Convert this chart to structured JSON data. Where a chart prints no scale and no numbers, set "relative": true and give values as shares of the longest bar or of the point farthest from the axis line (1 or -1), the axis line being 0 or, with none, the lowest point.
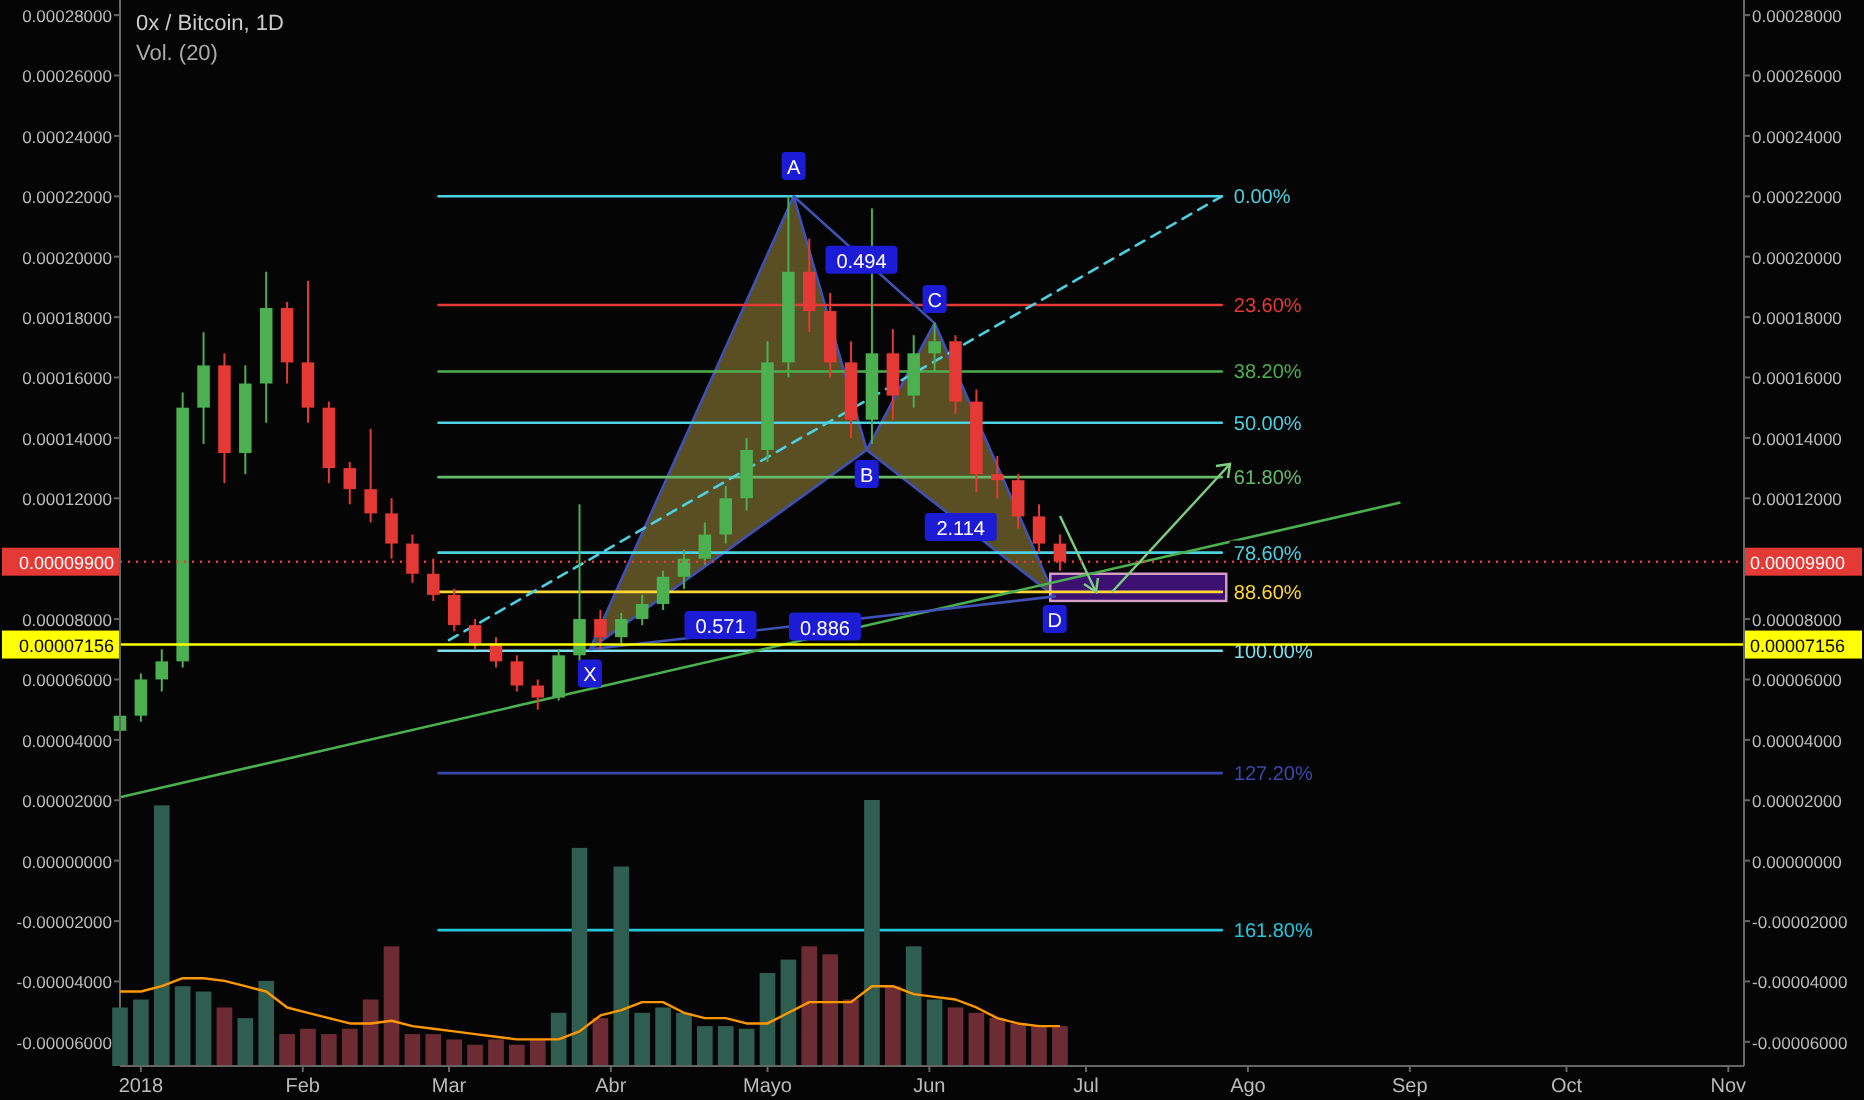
{
  "chart_data": [
    {
      "type": "candlestick",
      "title": "0x / Bitcoin, 1D",
      "x": [
        "2017-12-28",
        "2018-01-01",
        "2018-01-05",
        "2018-01-09",
        "2018-01-13",
        "2018-01-17",
        "2018-01-21",
        "2018-01-25",
        "2018-01-29",
        "2018-02-02",
        "2018-02-06",
        "2018-02-10",
        "2018-02-14",
        "2018-02-18",
        "2018-02-22",
        "2018-02-26",
        "2018-03-02",
        "2018-03-06",
        "2018-03-10",
        "2018-03-14",
        "2018-03-18",
        "2018-03-22",
        "2018-03-26",
        "2018-03-30",
        "2018-04-03",
        "2018-04-07",
        "2018-04-11",
        "2018-04-15",
        "2018-04-19",
        "2018-04-23",
        "2018-04-27",
        "2018-05-01",
        "2018-05-05",
        "2018-05-09",
        "2018-05-13",
        "2018-05-17",
        "2018-05-21",
        "2018-05-25",
        "2018-05-29",
        "2018-06-02",
        "2018-06-06",
        "2018-06-10",
        "2018-06-14",
        "2018-06-18",
        "2018-06-22",
        "2018-06-26"
      ],
      "ohlc": [
        [
          4.3e-05,
          5e-05,
          4.2e-05,
          4.8e-05
        ],
        [
          4.8e-05,
          6.2e-05,
          4.6e-05,
          6e-05
        ],
        [
          6e-05,
          7e-05,
          5.6e-05,
          6.6e-05
        ],
        [
          6.6e-05,
          0.000155,
          6.4e-05,
          0.00015
        ],
        [
          0.00015,
          0.000175,
          0.000138,
          0.000164
        ],
        [
          0.000164,
          0.000168,
          0.000125,
          0.000135
        ],
        [
          0.000135,
          0.000164,
          0.000128,
          0.000158
        ],
        [
          0.000158,
          0.000195,
          0.000145,
          0.000183
        ],
        [
          0.000183,
          0.000185,
          0.000158,
          0.000165
        ],
        [
          0.000165,
          0.000192,
          0.000145,
          0.00015
        ],
        [
          0.00015,
          0.000152,
          0.000125,
          0.00013
        ],
        [
          0.00013,
          0.000132,
          0.000118,
          0.000123
        ],
        [
          0.000123,
          0.000143,
          0.000112,
          0.000115
        ],
        [
          0.000115,
          0.00012,
          0.0001,
          0.000105
        ],
        [
          0.000105,
          0.000108,
          9.2e-05,
          9.5e-05
        ],
        [
          9.5e-05,
          0.0001,
          8.6e-05,
          8.8e-05
        ],
        [
          8.8e-05,
          9e-05,
          7.6e-05,
          7.8e-05
        ],
        [
          7.8e-05,
          8e-05,
          7e-05,
          7.2e-05
        ],
        [
          7.2e-05,
          7.4e-05,
          6.4e-05,
          6.6e-05
        ],
        [
          6.6e-05,
          6.8e-05,
          5.6e-05,
          5.8e-05
        ],
        [
          5.8e-05,
          6e-05,
          5e-05,
          5.4e-05
        ],
        [
          5.4e-05,
          7e-05,
          5.3e-05,
          6.8e-05
        ],
        [
          6.8e-05,
          0.000118,
          6.6e-05,
          8e-05
        ],
        [
          8e-05,
          8.3e-05,
          7e-05,
          7.4e-05
        ],
        [
          7.4e-05,
          8.2e-05,
          7.2e-05,
          8e-05
        ],
        [
          8e-05,
          8.8e-05,
          7.8e-05,
          8.5e-05
        ],
        [
          8.5e-05,
          9.6e-05,
          8.3e-05,
          9.4e-05
        ],
        [
          9.4e-05,
          0.000103,
          9e-05,
          0.0001
        ],
        [
          0.0001,
          0.000112,
          9.8e-05,
          0.000108
        ],
        [
          0.000108,
          0.000124,
          0.000105,
          0.00012
        ],
        [
          0.00012,
          0.00014,
          0.000116,
          0.000136
        ],
        [
          0.000136,
          0.000172,
          0.000132,
          0.000165
        ],
        [
          0.000165,
          0.00022,
          0.00016,
          0.000195
        ],
        [
          0.000195,
          0.000206,
          0.000175,
          0.000182
        ],
        [
          0.000182,
          0.000188,
          0.00016,
          0.000165
        ],
        [
          0.000165,
          0.000172,
          0.00014,
          0.000146
        ],
        [
          0.000146,
          0.000216,
          0.000138,
          0.000168
        ],
        [
          0.000168,
          0.000176,
          0.000146,
          0.000154
        ],
        [
          0.000154,
          0.000174,
          0.00015,
          0.000168
        ],
        [
          0.000168,
          0.000178,
          0.000162,
          0.000172
        ],
        [
          0.000172,
          0.000174,
          0.000148,
          0.000152
        ],
        [
          0.000152,
          0.000156,
          0.000122,
          0.000128
        ],
        [
          0.000128,
          0.000134,
          0.00012,
          0.000126
        ],
        [
          0.000126,
          0.000128,
          0.00011,
          0.000114
        ],
        [
          0.000114,
          0.000118,
          0.000102,
          0.000105
        ],
        [
          0.000105,
          0.000108,
          9.6e-05,
          9.9e-05
        ]
      ],
      "colors": [
        "#4caf50",
        "#4caf50",
        "#4caf50",
        "#4caf50",
        "#4caf50",
        "#e53935",
        "#4caf50",
        "#4caf50",
        "#e53935",
        "#e53935",
        "#e53935",
        "#e53935",
        "#e53935",
        "#e53935",
        "#e53935",
        "#e53935",
        "#e53935",
        "#e53935",
        "#e53935",
        "#e53935",
        "#e53935",
        "#4caf50",
        "#4caf50",
        "#e53935",
        "#4caf50",
        "#4caf50",
        "#4caf50",
        "#4caf50",
        "#4caf50",
        "#4caf50",
        "#4caf50",
        "#4caf50",
        "#4caf50",
        "#e53935",
        "#e53935",
        "#e53935",
        "#4caf50",
        "#e53935",
        "#4caf50",
        "#4caf50",
        "#e53935",
        "#e53935",
        "#e53935",
        "#e53935",
        "#e53935",
        "#e53935"
      ],
      "xlim": [
        "2017-12-28",
        "2018-11-04"
      ],
      "xticks": [
        {
          "value": "2018-01-01",
          "label": "2018"
        },
        {
          "value": "2018-02-01",
          "label": "Feb"
        },
        {
          "value": "2018-03-01",
          "label": "Mar"
        },
        {
          "value": "2018-04-01",
          "label": "Abr"
        },
        {
          "value": "2018-05-01",
          "label": "Mayo"
        },
        {
          "value": "2018-06-01",
          "label": "Jun"
        },
        {
          "value": "2018-07-01",
          "label": "Jul"
        },
        {
          "value": "2018-08-01",
          "label": "Ago"
        },
        {
          "value": "2018-09-01",
          "label": "Sep"
        },
        {
          "value": "2018-10-01",
          "label": "Oct"
        },
        {
          "value": "2018-11-01",
          "label": "Nov"
        }
      ],
      "ylim": [
        -6.8e-05,
        0.000285
      ],
      "yticks": [
        {
          "value": -6e-05,
          "label": "-0.00006000"
        },
        {
          "value": -4e-05,
          "label": "-0.00004000"
        },
        {
          "value": -2e-05,
          "label": "-0.00002000"
        },
        {
          "value": 0,
          "label": "0.00000000"
        },
        {
          "value": 2e-05,
          "label": "0.00002000"
        },
        {
          "value": 4e-05,
          "label": "0.00004000"
        },
        {
          "value": 6e-05,
          "label": "0.00006000"
        },
        {
          "value": 8e-05,
          "label": "0.00008000"
        },
        {
          "value": 0.00012,
          "label": "0.00012000"
        },
        {
          "value": 0.00014,
          "label": "0.00014000"
        },
        {
          "value": 0.00016,
          "label": "0.00016000"
        },
        {
          "value": 0.00018,
          "label": "0.00018000"
        },
        {
          "value": 0.0002,
          "label": "0.00020000"
        },
        {
          "value": 0.00022,
          "label": "0.00022000"
        },
        {
          "value": 0.00024,
          "label": "0.00024000"
        },
        {
          "value": 0.00026,
          "label": "0.00026000"
        },
        {
          "value": 0.00028,
          "label": "0.00028000"
        }
      ],
      "y2lim": [
        -6.8e-05,
        0.000285
      ],
      "y2ticks": [
        {
          "value": -6e-05,
          "label": "-0.00006000"
        },
        {
          "value": -4e-05,
          "label": "-0.00004000"
        },
        {
          "value": -2e-05,
          "label": "-0.00002000"
        },
        {
          "value": 0,
          "label": "0.00000000"
        },
        {
          "value": 2e-05,
          "label": "0.00002000"
        },
        {
          "value": 4e-05,
          "label": "0.00004000"
        },
        {
          "value": 6e-05,
          "label": "0.00006000"
        },
        {
          "value": 8e-05,
          "label": "0.00008000"
        },
        {
          "value": 0.00012,
          "label": "0.00012000"
        },
        {
          "value": 0.00014,
          "label": "0.00014000"
        },
        {
          "value": 0.00016,
          "label": "0.00016000"
        },
        {
          "value": 0.00018,
          "label": "0.00018000"
        },
        {
          "value": 0.0002,
          "label": "0.00020000"
        },
        {
          "value": 0.00022,
          "label": "0.00022000"
        },
        {
          "value": 0.00024,
          "label": "0.00024000"
        },
        {
          "value": 0.00026,
          "label": "0.00026000"
        },
        {
          "value": 0.00028,
          "label": "0.00028000"
        }
      ],
      "series": [
        {
          "type": "line",
          "name": "0.00%",
          "color": "#4dd0e1",
          "x": [
            "2018-02-27",
            "2018-07-27"
          ],
          "values": [
            0.00022,
            0.00022
          ]
        },
        {
          "type": "line",
          "name": "23.60%",
          "color": "#e53935",
          "x": [
            "2018-02-27",
            "2018-07-27"
          ],
          "values": [
            0.000184,
            0.000184
          ]
        },
        {
          "type": "line",
          "name": "38.20%",
          "color": "#4caf50",
          "x": [
            "2018-02-27",
            "2018-07-27"
          ],
          "values": [
            0.000162,
            0.000162
          ]
        },
        {
          "type": "line",
          "name": "50.00%",
          "color": "#4dd0e1",
          "x": [
            "2018-02-27",
            "2018-07-27"
          ],
          "values": [
            0.000145,
            0.000145
          ]
        },
        {
          "type": "line",
          "name": "61.80%",
          "color": "#66bb6a",
          "x": [
            "2018-02-27",
            "2018-07-27"
          ],
          "values": [
            0.000127,
            0.000127
          ]
        },
        {
          "type": "line",
          "name": "78.60%",
          "color": "#4dd0e1",
          "x": [
            "2018-02-27",
            "2018-07-27"
          ],
          "values": [
            0.000102,
            0.000102
          ]
        },
        {
          "type": "line",
          "name": "88.60%",
          "color": "#fdd835",
          "x": [
            "2018-02-27",
            "2018-07-27"
          ],
          "values": [
            8.9e-05,
            8.9e-05
          ]
        },
        {
          "type": "line",
          "name": "100.00%",
          "color": "#80deea",
          "x": [
            "2018-02-27",
            "2018-07-27"
          ],
          "values": [
            6.95e-05,
            6.95e-05
          ]
        },
        {
          "type": "line",
          "name": "127.20%",
          "color": "#3949ab",
          "x": [
            "2018-02-27",
            "2018-07-27"
          ],
          "values": [
            2.9e-05,
            2.9e-05
          ]
        },
        {
          "type": "line",
          "name": "161.80%",
          "color": "#26c6da",
          "x": [
            "2018-02-27",
            "2018-07-27"
          ],
          "values": [
            -2.3e-05,
            -2.3e-05
          ]
        },
        {
          "type": "line",
          "color": "#4caf50",
          "x": [
            "2017-12-28",
            "2018-08-30"
          ],
          "values": [
            2.1e-05,
            0.0001185
          ]
        },
        {
          "type": "line",
          "color": "#4dd0e1",
          "line_style": "dashed",
          "x": [
            "2018-03-01",
            "2018-07-27"
          ],
          "values": [
            7.3e-05,
            0.00022
          ]
        },
        {
          "type": "area",
          "color": "#3f51b5",
          "x": [
            "2018-03-28",
            "2018-05-06",
            "2018-05-20",
            "2018-06-02",
            "2018-06-25"
          ],
          "values": [
            7e-05,
            0.00022,
            0.000136,
            0.000178,
            8.75e-05
          ]
        },
        {
          "type": "line",
          "color": "#3f51b5",
          "x": [
            "2018-03-28",
            "2018-06-25"
          ],
          "values": [
            7e-05,
            8.75e-05
          ]
        },
        {
          "type": "line",
          "color": "#3f51b5",
          "x": [
            "2018-05-06",
            "2018-06-02"
          ],
          "values": [
            0.00022,
            0.000178
          ]
        },
        {
          "type": "bar",
          "color": "#4a148c",
          "x": [
            "2018-07-11"
          ],
          "base": [
            8.6e-05
          ],
          "values": [
            9e-06
          ]
        }
      ],
      "ref_lines": [
        {
          "axis": "y",
          "value": 9.9e-05,
          "label": "0.00009900",
          "color": "#e53935",
          "line_style": "dotted"
        },
        {
          "axis": "y",
          "value": 7.156e-05,
          "label": "0.00007156",
          "color": "#ffff00"
        }
      ],
      "annotations": [
        {
          "text": "X",
          "x": "2018-03-28",
          "y": 6.2e-05
        },
        {
          "text": "A",
          "x": "2018-05-06",
          "y": 0.00023
        },
        {
          "text": "B",
          "x": "2018-05-20",
          "y": 0.000128
        },
        {
          "text": "C",
          "x": "2018-06-02",
          "y": 0.000186
        },
        {
          "text": "D",
          "x": "2018-06-25",
          "y": 8e-05
        },
        {
          "text": "0.494",
          "x": "2018-05-19",
          "y": 0.000199
        },
        {
          "text": "0.571",
          "x": "2018-04-22",
          "y": 7.8e-05
        },
        {
          "text": "2.114",
          "x": "2018-06-07",
          "y": 0.0001105
        },
        {
          "text": "0.886",
          "x": "2018-05-12",
          "y": 7.75e-05
        }
      ]
    },
    {
      "type": "bar",
      "title": "Vol. (20)",
      "relative": true,
      "xlim": [
        "2017-12-28",
        "2018-11-04"
      ],
      "x": [
        "2017-12-28",
        "2018-01-01",
        "2018-01-05",
        "2018-01-09",
        "2018-01-13",
        "2018-01-17",
        "2018-01-21",
        "2018-01-25",
        "2018-01-29",
        "2018-02-02",
        "2018-02-06",
        "2018-02-10",
        "2018-02-14",
        "2018-02-18",
        "2018-02-22",
        "2018-02-26",
        "2018-03-02",
        "2018-03-06",
        "2018-03-10",
        "2018-03-14",
        "2018-03-18",
        "2018-03-22",
        "2018-03-26",
        "2018-03-30",
        "2018-04-03",
        "2018-04-07",
        "2018-04-11",
        "2018-04-15",
        "2018-04-19",
        "2018-04-23",
        "2018-04-27",
        "2018-05-01",
        "2018-05-05",
        "2018-05-09",
        "2018-05-13",
        "2018-05-17",
        "2018-05-21",
        "2018-05-25",
        "2018-05-29",
        "2018-06-02",
        "2018-06-06",
        "2018-06-10",
        "2018-06-14",
        "2018-06-18",
        "2018-06-22",
        "2018-06-26"
      ],
      "series": [
        {
          "type": "bar",
          "values": [
            0.22,
            0.25,
            0.98,
            0.3,
            0.28,
            0.22,
            0.18,
            0.32,
            0.12,
            0.14,
            0.12,
            0.14,
            0.25,
            0.45,
            0.12,
            0.12,
            0.1,
            0.08,
            0.1,
            0.08,
            0.1,
            0.2,
            0.82,
            0.18,
            0.75,
            0.2,
            0.22,
            0.2,
            0.15,
            0.15,
            0.14,
            0.35,
            0.4,
            0.45,
            0.42,
            0.25,
            1.0,
            0.3,
            0.45,
            0.25,
            0.22,
            0.2,
            0.18,
            0.16,
            0.15,
            0.15
          ],
          "colors": [
            "#2f5d50",
            "#2f5d50",
            "#2f5d50",
            "#2f5d50",
            "#2f5d50",
            "#6d2c33",
            "#2f5d50",
            "#2f5d50",
            "#6d2c33",
            "#6d2c33",
            "#6d2c33",
            "#6d2c33",
            "#6d2c33",
            "#6d2c33",
            "#6d2c33",
            "#6d2c33",
            "#6d2c33",
            "#6d2c33",
            "#6d2c33",
            "#6d2c33",
            "#6d2c33",
            "#2f5d50",
            "#2f5d50",
            "#6d2c33",
            "#2f5d50",
            "#2f5d50",
            "#2f5d50",
            "#2f5d50",
            "#2f5d50",
            "#2f5d50",
            "#2f5d50",
            "#2f5d50",
            "#2f5d50",
            "#6d2c33",
            "#6d2c33",
            "#6d2c33",
            "#2f5d50",
            "#6d2c33",
            "#2f5d50",
            "#2f5d50",
            "#6d2c33",
            "#6d2c33",
            "#6d2c33",
            "#6d2c33",
            "#6d2c33",
            "#6d2c33"
          ]
        },
        {
          "type": "line",
          "color": "#ff9800",
          "values": [
            0.28,
            0.28,
            0.3,
            0.33,
            0.33,
            0.32,
            0.3,
            0.28,
            0.22,
            0.2,
            0.18,
            0.16,
            0.16,
            0.17,
            0.15,
            0.14,
            0.13,
            0.12,
            0.11,
            0.1,
            0.1,
            0.1,
            0.13,
            0.19,
            0.21,
            0.24,
            0.24,
            0.2,
            0.18,
            0.18,
            0.16,
            0.16,
            0.2,
            0.24,
            0.24,
            0.24,
            0.3,
            0.3,
            0.27,
            0.26,
            0.25,
            0.22,
            0.18,
            0.16,
            0.15,
            0.15
          ]
        }
      ]
    }
  ]
}
